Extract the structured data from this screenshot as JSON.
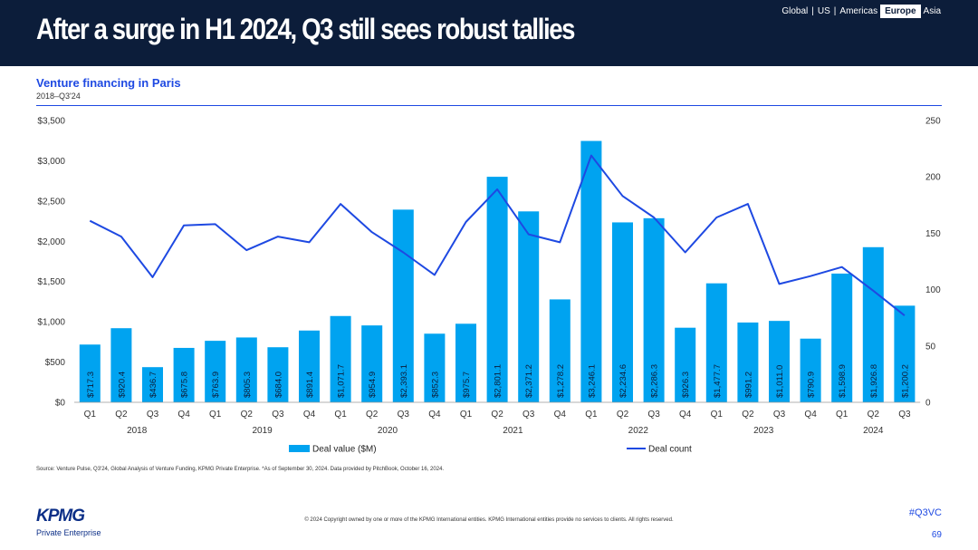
{
  "header": {
    "title": "After a surge in H1 2024, Q3 still sees robust tallies",
    "regions": [
      "Global",
      "US",
      "Americas",
      "Europe",
      "Asia"
    ],
    "active_region": "Europe"
  },
  "subtitle": "Venture financing in Paris",
  "period": "2018–Q3'24",
  "colors": {
    "bar": "#00a3f0",
    "line": "#1e49e2",
    "header_bg": "#0c1d3a"
  },
  "chart_data": {
    "type": "bar",
    "title": "Venture financing in Paris",
    "categories": [
      "Q1",
      "Q2",
      "Q3",
      "Q4",
      "Q1",
      "Q2",
      "Q3",
      "Q4",
      "Q1",
      "Q2",
      "Q3",
      "Q4",
      "Q1",
      "Q2",
      "Q3",
      "Q4",
      "Q1",
      "Q2",
      "Q3",
      "Q4",
      "Q1",
      "Q2",
      "Q3",
      "Q4",
      "Q1",
      "Q2",
      "Q3"
    ],
    "years": [
      {
        "label": "2018",
        "start": 0,
        "end": 3
      },
      {
        "label": "2019",
        "start": 4,
        "end": 7
      },
      {
        "label": "2020",
        "start": 8,
        "end": 11
      },
      {
        "label": "2021",
        "start": 12,
        "end": 15
      },
      {
        "label": "2022",
        "start": 16,
        "end": 19
      },
      {
        "label": "2023",
        "start": 20,
        "end": 23
      },
      {
        "label": "2024",
        "start": 24,
        "end": 26
      }
    ],
    "series": [
      {
        "name": "Deal value ($M)",
        "type": "bar",
        "axis": "left",
        "values": [
          717.3,
          920.4,
          436.7,
          675.8,
          763.9,
          805.3,
          684.0,
          891.4,
          1071.7,
          954.9,
          2393.1,
          852.3,
          975.7,
          2801.1,
          2371.2,
          1278.2,
          3246.1,
          2234.6,
          2286.3,
          926.3,
          1477.7,
          991.2,
          1011.0,
          790.9,
          1598.9,
          1926.8,
          1200.2
        ],
        "labels": [
          "$717.3",
          "$920.4",
          "$436.7",
          "$675.8",
          "$763.9",
          "$805.3",
          "$684.0",
          "$891.4",
          "$1,071.7",
          "$954.9",
          "$2,393.1",
          "$852.3",
          "$975.7",
          "$2,801.1",
          "$2,371.2",
          "$1,278.2",
          "$3,246.1",
          "$2,234.6",
          "$2,286.3",
          "$926.3",
          "$1,477.7",
          "$991.2",
          "$1,011.0",
          "$790.9",
          "$1,598.9",
          "$1,926.8",
          "$1,200.2"
        ]
      },
      {
        "name": "Deal count",
        "type": "line",
        "axis": "right",
        "values": [
          161,
          147,
          111,
          157,
          158,
          135,
          147,
          142,
          176,
          151,
          133,
          113,
          160,
          189,
          149,
          142,
          219,
          183,
          164,
          133,
          164,
          176,
          105,
          112,
          120,
          99,
          77
        ]
      }
    ],
    "y_left": {
      "min": 0,
      "max": 3500,
      "ticks": [
        0,
        500,
        1000,
        1500,
        2000,
        2500,
        3000,
        3500
      ],
      "tick_labels": [
        "$0",
        "$500",
        "$1,000",
        "$1,500",
        "$2,000",
        "$2,500",
        "$3,000",
        "$3,500"
      ]
    },
    "y_right": {
      "min": 0,
      "max": 250,
      "ticks": [
        0,
        50,
        100,
        150,
        200,
        250
      ],
      "tick_labels": [
        "0",
        "50",
        "100",
        "150",
        "200",
        "250"
      ]
    },
    "legend": [
      {
        "label": "Deal value ($M)",
        "kind": "bar"
      },
      {
        "label": "Deal count",
        "kind": "line"
      }
    ],
    "legend_position": "bottom"
  },
  "source": "Source: Venture Pulse, Q3'24, Global Analysis of Venture Funding, KPMG Private Enterprise. *As of September 30, 2024. Data provided by PitchBook, October 16, 2024.",
  "footer": {
    "logo_text": "KPMG",
    "logo_subtext": "Private Enterprise",
    "copyright": "© 2024 Copyright owned by one or more of the KPMG International entities. KPMG International entities provide no services to clients. All rights reserved.",
    "hashtag": "#Q3VC",
    "page_number": "69"
  }
}
